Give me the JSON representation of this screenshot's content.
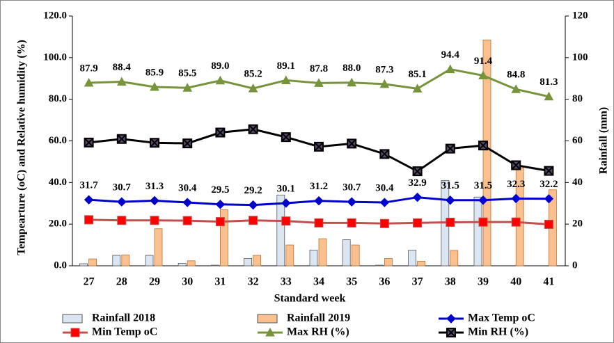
{
  "chart_data": {
    "type": "bar_line",
    "x_label": "Standard week",
    "y_label": "Tempearture (oC) and Relative humidity (%)",
    "y2_label": "Rainfall (mm)",
    "categories": [
      "27",
      "28",
      "29",
      "30",
      "31",
      "32",
      "33",
      "34",
      "35",
      "36",
      "37",
      "38",
      "39",
      "40",
      "41"
    ],
    "ylim": [
      0,
      120
    ],
    "yticks": [
      {
        "value": 0,
        "label": "0.0"
      },
      {
        "value": 20,
        "label": "20.0"
      },
      {
        "value": 40,
        "label": "40.0"
      },
      {
        "value": 60,
        "label": "60.0"
      },
      {
        "value": 80,
        "label": "80.0"
      },
      {
        "value": 100,
        "label": "100.0"
      },
      {
        "value": 120,
        "label": "120.0"
      }
    ],
    "y2lim": [
      0,
      120
    ],
    "y2ticks": [
      0,
      20,
      40,
      60,
      80,
      100,
      120
    ],
    "legend": "bottom",
    "series": [
      {
        "name": "Rainfall 2018",
        "kind": "bar",
        "axis": "y2",
        "color": "#dce6f2",
        "values": [
          1,
          5,
          5,
          1.2,
          0.3,
          3.5,
          34,
          7.5,
          12.5,
          0.3,
          7.5,
          41,
          33,
          0,
          0
        ]
      },
      {
        "name": "Rainfall 2019",
        "kind": "bar",
        "axis": "y2",
        "color": "#fac090",
        "values": [
          3.3,
          5.2,
          17.8,
          2.4,
          27,
          5,
          10,
          13,
          10,
          3.5,
          2.2,
          7.4,
          108.5,
          47,
          36.5
        ]
      },
      {
        "name": "Max Temp oC",
        "kind": "line",
        "marker": "diamond",
        "color": "#0000cc",
        "values": [
          31.7,
          30.7,
          31.3,
          30.4,
          29.5,
          29.2,
          30.1,
          31.2,
          30.7,
          30.4,
          32.9,
          31.5,
          31.5,
          32.3,
          32.2
        ],
        "value_labels": [
          "31.7",
          "30.7",
          "31.3",
          "30.4",
          "29.5",
          "29.2",
          "30.1",
          "31.2",
          "30.7",
          "30.4",
          "32.9",
          "31.5",
          "31.5",
          "32.3",
          "32.2"
        ]
      },
      {
        "name": "Min Temp oC",
        "kind": "line",
        "marker": "square",
        "color": "#c0504d",
        "values": [
          22.1,
          21.8,
          21.8,
          21.7,
          21.2,
          21.8,
          21.5,
          20.6,
          20.6,
          20.3,
          20.6,
          20.9,
          21,
          21,
          19.9
        ]
      },
      {
        "name": "Max RH (%)",
        "kind": "line",
        "marker": "triangle",
        "color": "#77933c",
        "values": [
          87.9,
          88.4,
          85.9,
          85.5,
          89,
          85.2,
          89.1,
          87.8,
          88,
          87.3,
          85.1,
          94.4,
          91.4,
          84.8,
          81.3
        ],
        "value_labels": [
          "87.9",
          "88.4",
          "85.9",
          "85.5",
          "89.0",
          "85.2",
          "89.1",
          "87.8",
          "88.0",
          "87.3",
          "85.1",
          "94.4",
          "91.4",
          "84.8",
          "81.3"
        ]
      },
      {
        "name": "Min RH (%)",
        "kind": "line",
        "marker": "xsquare",
        "color": "#000000",
        "values": [
          59.2,
          60.9,
          59.1,
          58.8,
          64,
          65.6,
          61.8,
          57.2,
          58.7,
          53.7,
          45.4,
          56.3,
          57.8,
          48.3,
          45.6
        ]
      }
    ]
  }
}
